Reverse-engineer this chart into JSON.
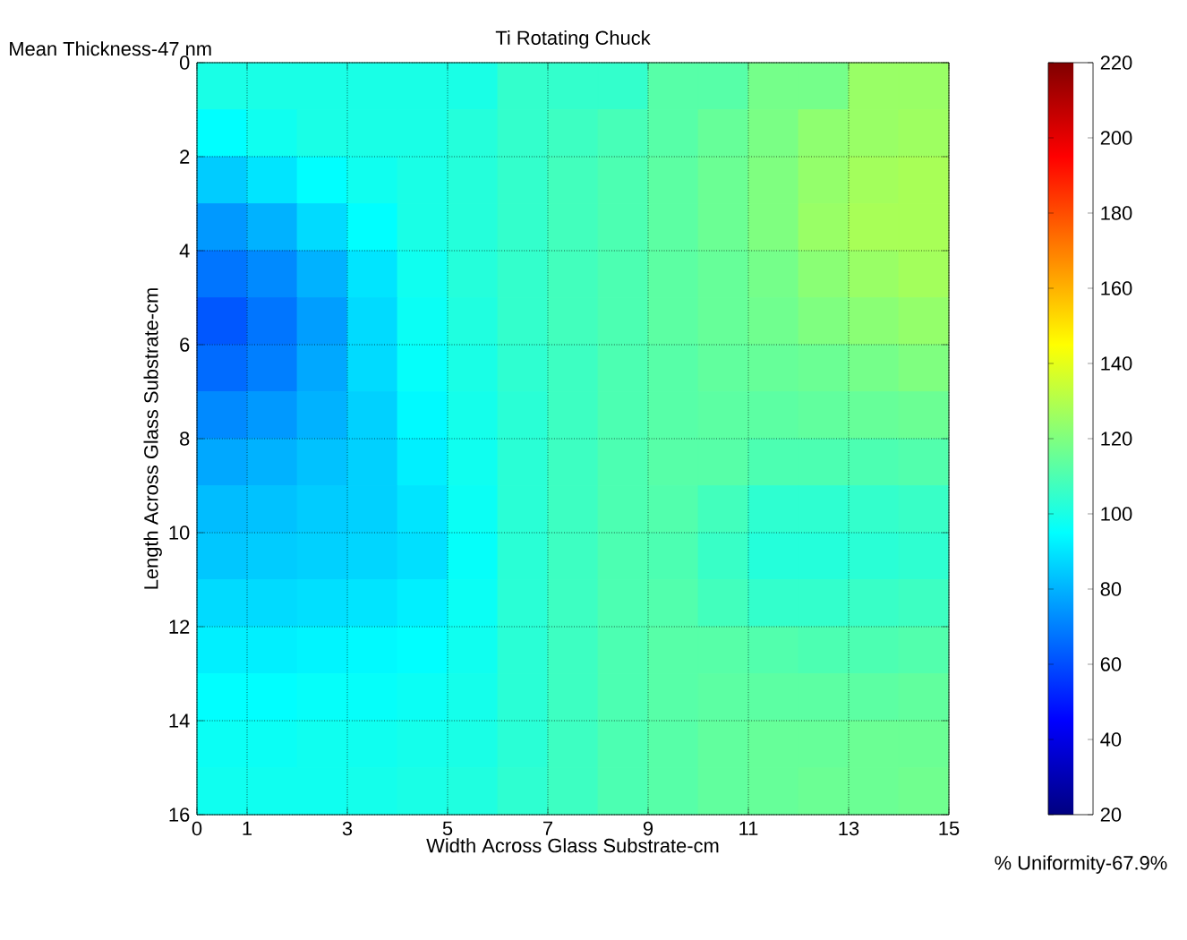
{
  "chart_data": {
    "type": "heatmap",
    "title": "Ti Rotating Chuck",
    "xlabel": "Width Across Glass Substrate-cm",
    "ylabel": "Length Across Glass Substrate-cm",
    "annotations": [
      "Mean Thickness-47 nm",
      "% Uniformity-67.9%"
    ],
    "x": [
      0.5,
      1.5,
      2.5,
      3.5,
      4.5,
      5.5,
      6.5,
      7.5,
      8.5,
      9.5,
      10.5,
      11.5,
      12.5,
      13.5,
      14.5
    ],
    "xlim": [
      0,
      15
    ],
    "ylim": [
      16,
      0
    ],
    "xticks": [
      0,
      1,
      3,
      5,
      7,
      9,
      11,
      13,
      15
    ],
    "yticks": [
      0,
      2,
      4,
      6,
      8,
      10,
      12,
      14,
      16
    ],
    "grid": true,
    "clim": [
      20,
      220
    ],
    "cticks": [
      20,
      40,
      60,
      80,
      100,
      120,
      140,
      160,
      180,
      200,
      220
    ],
    "cells": [
      [
        100,
        100,
        100,
        100,
        100,
        100,
        105,
        105,
        105,
        112,
        112,
        118,
        118,
        125,
        125
      ],
      [
        95,
        98,
        100,
        100,
        100,
        102,
        105,
        107,
        109,
        112,
        115,
        119,
        123,
        125,
        126
      ],
      [
        85,
        90,
        95,
        98,
        100,
        102,
        105,
        108,
        110,
        113,
        116,
        120,
        124,
        127,
        128
      ],
      [
        75,
        80,
        88,
        95,
        100,
        102,
        105,
        108,
        110,
        113,
        116,
        120,
        125,
        128,
        128
      ],
      [
        68,
        72,
        80,
        90,
        98,
        102,
        105,
        108,
        110,
        113,
        115,
        118,
        122,
        125,
        127
      ],
      [
        62,
        68,
        76,
        88,
        97,
        101,
        105,
        108,
        110,
        113,
        115,
        117,
        120,
        122,
        124
      ],
      [
        66,
        70,
        78,
        88,
        96,
        100,
        104,
        107,
        110,
        112,
        114,
        115,
        116,
        118,
        120
      ],
      [
        72,
        75,
        80,
        86,
        94,
        99,
        103,
        107,
        110,
        112,
        113,
        113,
        114,
        115,
        116
      ],
      [
        78,
        80,
        83,
        86,
        92,
        98,
        103,
        107,
        110,
        112,
        112,
        110,
        110,
        110,
        111
      ],
      [
        82,
        83,
        85,
        86,
        90,
        97,
        103,
        107,
        110,
        111,
        108,
        104,
        104,
        105,
        106
      ],
      [
        84,
        85,
        86,
        87,
        89,
        96,
        103,
        107,
        110,
        110,
        106,
        102,
        102,
        103,
        104
      ],
      [
        88,
        88,
        89,
        90,
        92,
        97,
        103,
        107,
        110,
        111,
        108,
        105,
        105,
        106,
        107
      ],
      [
        92,
        92,
        93,
        94,
        95,
        98,
        103,
        107,
        110,
        112,
        112,
        111,
        110,
        110,
        111
      ],
      [
        95,
        95,
        96,
        96,
        97,
        99,
        103,
        107,
        110,
        112,
        113,
        113,
        113,
        113,
        114
      ],
      [
        97,
        97,
        98,
        98,
        99,
        100,
        103,
        107,
        110,
        112,
        114,
        115,
        115,
        116,
        116
      ],
      [
        98,
        98,
        98,
        99,
        100,
        101,
        104,
        107,
        110,
        112,
        114,
        115,
        116,
        116,
        117
      ]
    ]
  }
}
